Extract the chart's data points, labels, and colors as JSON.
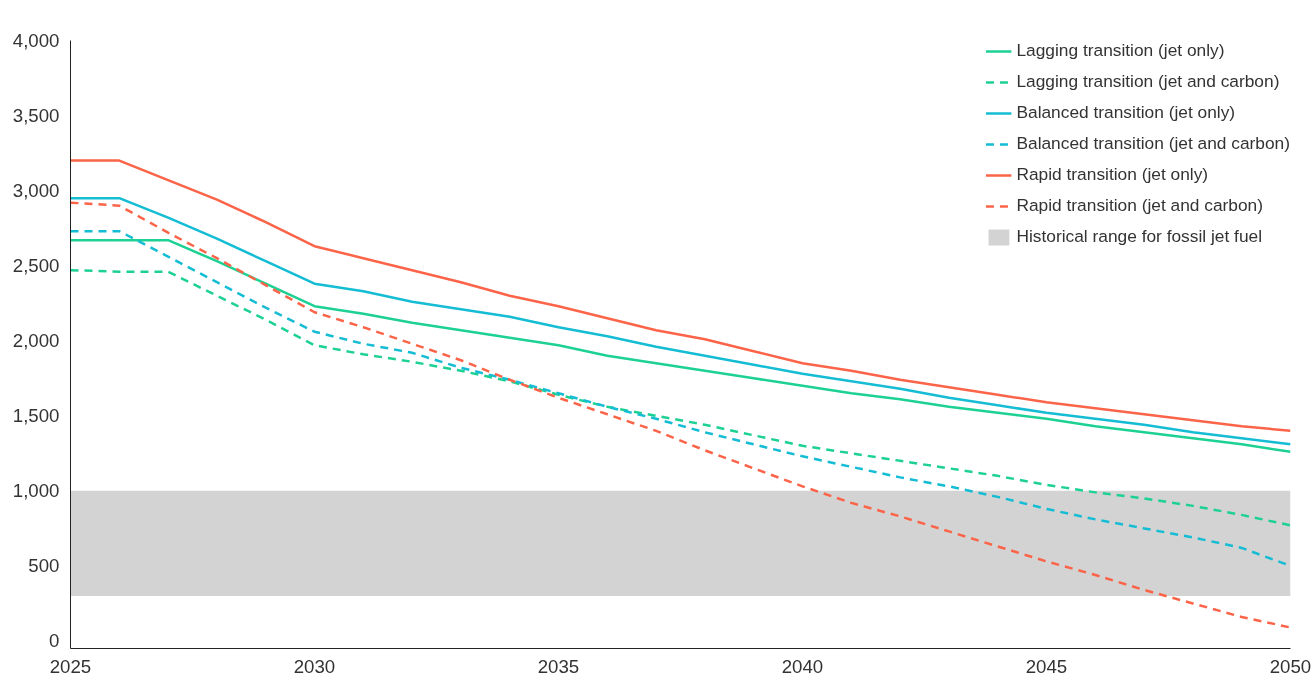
{
  "chart_data": {
    "type": "line",
    "x": [
      2025,
      2026,
      2027,
      2028,
      2029,
      2030,
      2031,
      2032,
      2033,
      2034,
      2035,
      2036,
      2037,
      2038,
      2039,
      2040,
      2041,
      2042,
      2043,
      2044,
      2045,
      2046,
      2047,
      2048,
      2049,
      2050
    ],
    "series": [
      {
        "name": "Lagging transition (jet only)",
        "color": "#1dd193",
        "line_style": "solid",
        "values": [
          2670,
          2670,
          2670,
          2530,
          2380,
          2230,
          2180,
          2120,
          2070,
          2020,
          1970,
          1900,
          1850,
          1800,
          1750,
          1700,
          1650,
          1610,
          1560,
          1520,
          1480,
          1430,
          1390,
          1350,
          1310,
          1260
        ]
      },
      {
        "name": "Lagging transition (jet and carbon)",
        "color": "#1dd193",
        "line_style": "dashed",
        "values": [
          2470,
          2460,
          2460,
          2300,
          2140,
          1970,
          1910,
          1860,
          1800,
          1730,
          1640,
          1560,
          1500,
          1440,
          1370,
          1300,
          1250,
          1200,
          1150,
          1100,
          1040,
          990,
          950,
          900,
          840,
          770
        ]
      },
      {
        "name": "Balanced transition (jet only)",
        "color": "#14bcd4",
        "line_style": "solid",
        "values": [
          2950,
          2950,
          2820,
          2680,
          2530,
          2380,
          2330,
          2260,
          2210,
          2160,
          2090,
          2030,
          1960,
          1900,
          1840,
          1780,
          1730,
          1680,
          1620,
          1570,
          1520,
          1480,
          1440,
          1390,
          1350,
          1310
        ]
      },
      {
        "name": "Balanced transition (jet and carbon)",
        "color": "#14bcd4",
        "line_style": "dashed",
        "values": [
          2730,
          2730,
          2560,
          2390,
          2220,
          2060,
          1980,
          1920,
          1820,
          1740,
          1650,
          1560,
          1480,
          1390,
          1310,
          1230,
          1160,
          1090,
          1030,
          960,
          880,
          810,
          750,
          690,
          620,
          500
        ]
      },
      {
        "name": "Rapid transition (jet only)",
        "color": "#fb6448",
        "line_style": "solid",
        "values": [
          3200,
          3200,
          3070,
          2940,
          2790,
          2630,
          2550,
          2470,
          2390,
          2300,
          2230,
          2150,
          2070,
          2010,
          1930,
          1850,
          1800,
          1740,
          1690,
          1640,
          1590,
          1550,
          1510,
          1470,
          1430,
          1400
        ]
      },
      {
        "name": "Rapid transition (jet and carbon)",
        "color": "#fb6448",
        "line_style": "dashed",
        "values": [
          2920,
          2900,
          2720,
          2550,
          2370,
          2190,
          2090,
          1980,
          1870,
          1740,
          1620,
          1510,
          1400,
          1270,
          1150,
          1030,
          920,
          830,
          730,
          630,
          530,
          440,
          340,
          250,
          160,
          90
        ]
      }
    ],
    "bands": [
      {
        "axis": "y",
        "from": 300,
        "to": 1000,
        "label": "Historical range for fossil jet fuel",
        "color": "#d3d3d3"
      }
    ],
    "xlim": [
      2025,
      2050
    ],
    "ylim": [
      -50,
      4000
    ],
    "xticks": [
      2025,
      2030,
      2035,
      2040,
      2045,
      2050
    ],
    "yticks": [
      {
        "value": 0,
        "label": "0"
      },
      {
        "value": 500,
        "label": "500"
      },
      {
        "value": 1000,
        "label": "1,000"
      },
      {
        "value": 1500,
        "label": "1,500"
      },
      {
        "value": 2000,
        "label": "2,000"
      },
      {
        "value": 2500,
        "label": "2,500"
      },
      {
        "value": 3000,
        "label": "3,000"
      },
      {
        "value": 3500,
        "label": "3,500"
      },
      {
        "value": 4000,
        "label": "4,000"
      }
    ],
    "grid": false,
    "legend": "top right",
    "marker": "none"
  }
}
